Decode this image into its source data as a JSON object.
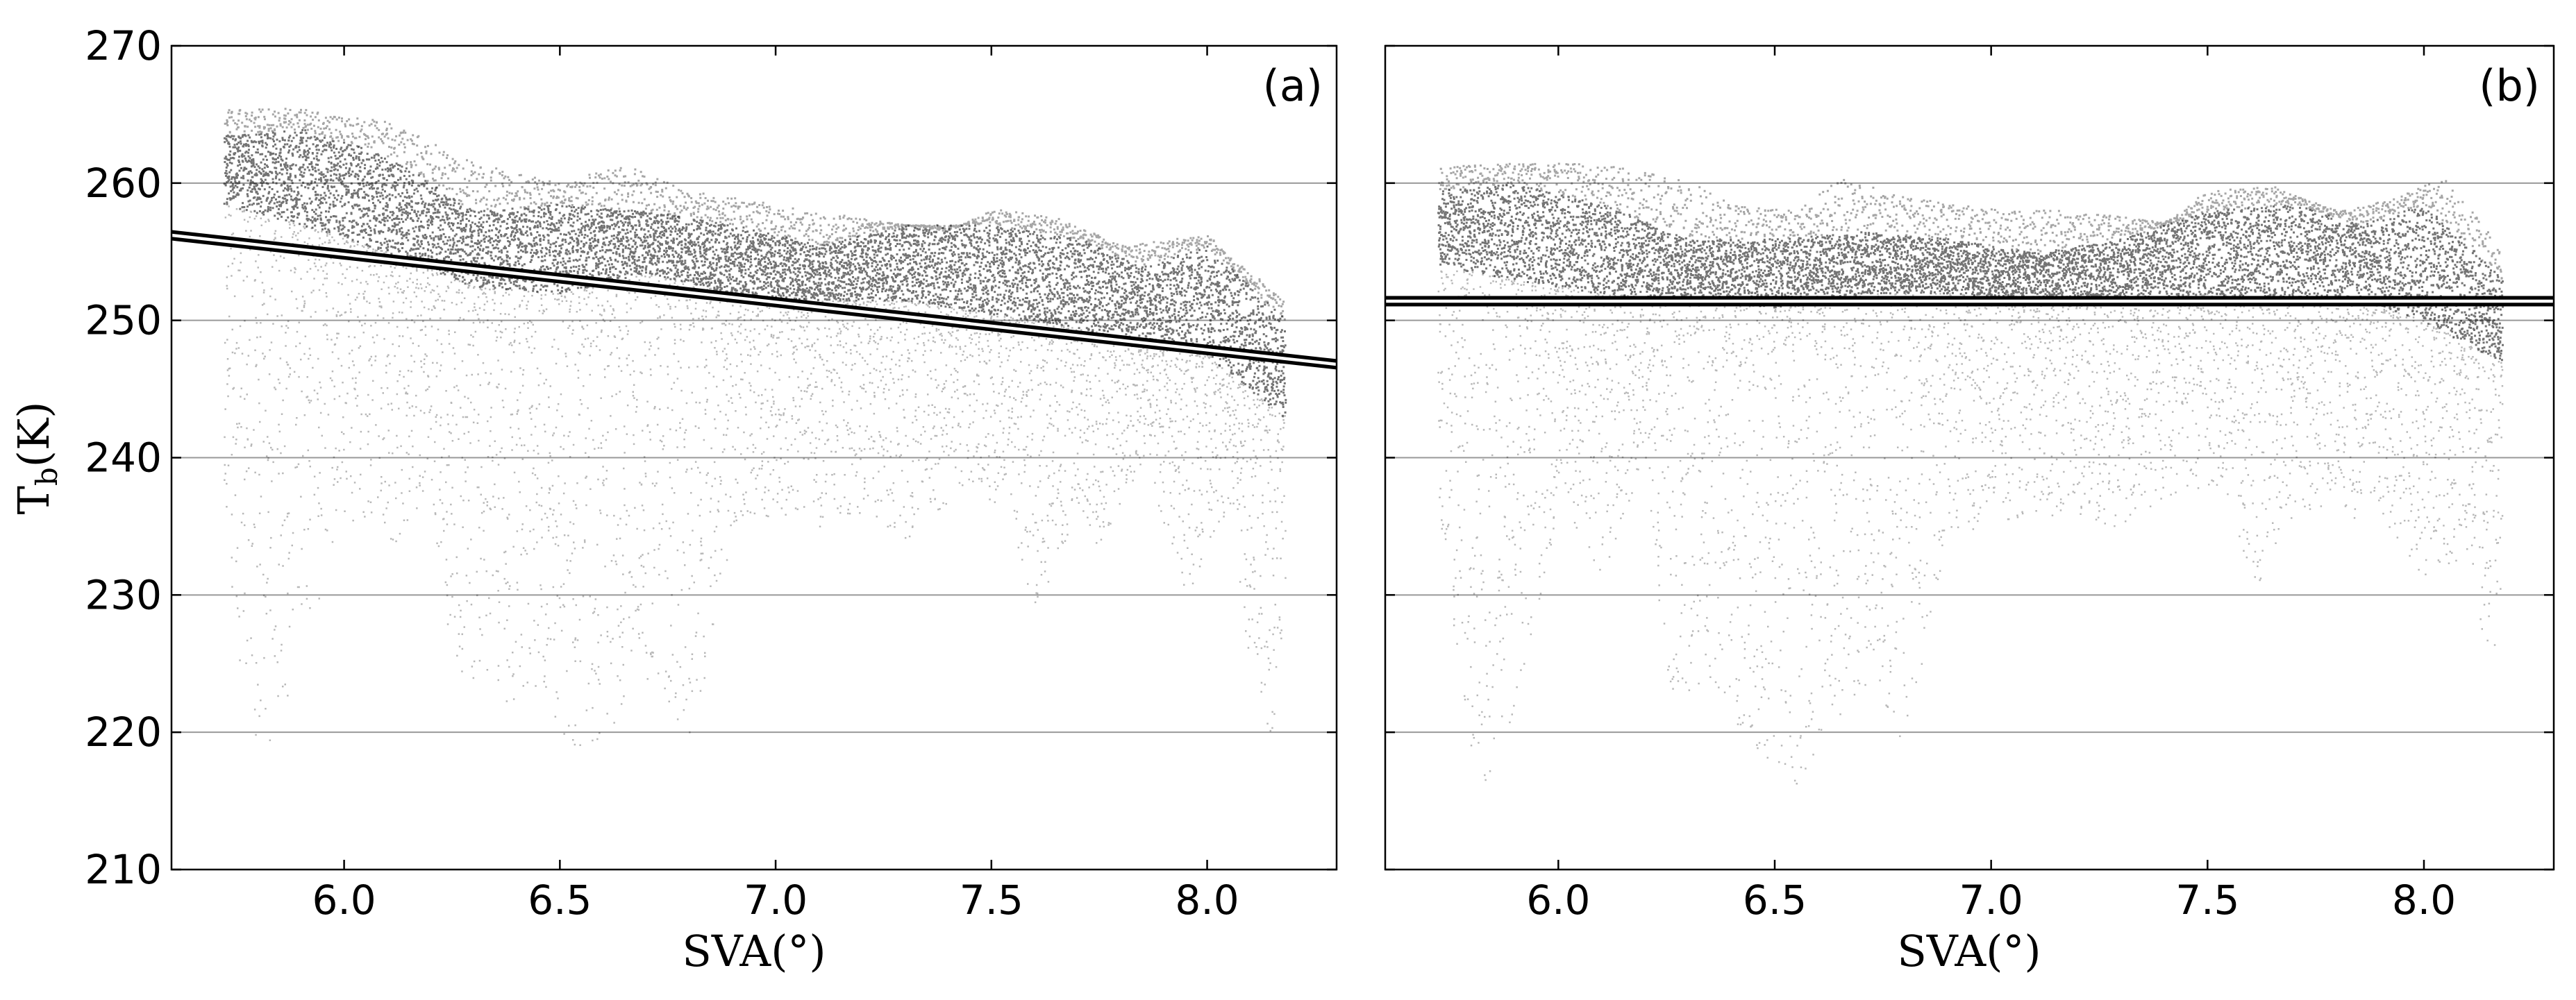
{
  "chart_data": [
    {
      "type": "scatter",
      "panel_label": "(a)",
      "xlabel": "SVA(°)",
      "ylabel_main": "T",
      "ylabel_sub": "b",
      "ylabel_unit": "(K)",
      "xlim": [
        5.6,
        8.3
      ],
      "ylim": [
        210,
        270
      ],
      "xticks": [
        6.0,
        6.5,
        7.0,
        7.5,
        8.0
      ],
      "xtick_labels": [
        "6.0",
        "6.5",
        "7.0",
        "7.5",
        "8.0"
      ],
      "yticks": [
        210,
        220,
        230,
        240,
        250,
        260,
        270
      ],
      "ytick_labels": [
        "210",
        "220",
        "230",
        "240",
        "250",
        "260",
        "270"
      ],
      "grid": "horizontal",
      "x_range_of_points": [
        5.72,
        8.18
      ],
      "upper_envelope": [
        [
          5.72,
          265.5
        ],
        [
          5.9,
          265.5
        ],
        [
          6.1,
          264.5
        ],
        [
          6.3,
          261.5
        ],
        [
          6.5,
          260
        ],
        [
          6.65,
          261.5
        ],
        [
          6.8,
          259.5
        ],
        [
          7.0,
          258.5
        ],
        [
          7.2,
          257.5
        ],
        [
          7.4,
          256.5
        ],
        [
          7.5,
          258.2
        ],
        [
          7.65,
          257.5
        ],
        [
          7.8,
          255.5
        ],
        [
          8.0,
          256.3
        ],
        [
          8.18,
          251.5
        ]
      ],
      "dense_band": [
        [
          5.72,
          263.5,
          258.5
        ],
        [
          5.9,
          264,
          257
        ],
        [
          6.1,
          262,
          255
        ],
        [
          6.3,
          258,
          252.5
        ],
        [
          6.5,
          258.5,
          252
        ],
        [
          6.7,
          258,
          253.5
        ],
        [
          6.9,
          257,
          252
        ],
        [
          7.1,
          255.5,
          251.5
        ],
        [
          7.3,
          257,
          251.5
        ],
        [
          7.5,
          257,
          250.5
        ],
        [
          7.7,
          256,
          249.5
        ],
        [
          7.85,
          254,
          248.5
        ],
        [
          8.0,
          255.5,
          247.5
        ],
        [
          8.18,
          250,
          243
        ]
      ],
      "lower_envelope": [
        [
          5.72,
          232
        ],
        [
          5.8,
          217
        ],
        [
          5.9,
          226
        ],
        [
          6.0,
          236
        ],
        [
          6.1,
          233
        ],
        [
          6.2,
          238
        ],
        [
          6.25,
          224
        ],
        [
          6.35,
          222
        ],
        [
          6.45,
          223
        ],
        [
          6.55,
          218
        ],
        [
          6.65,
          221
        ],
        [
          6.72,
          224
        ],
        [
          6.8,
          219
        ],
        [
          6.9,
          234
        ],
        [
          7.0,
          236
        ],
        [
          7.1,
          235
        ],
        [
          7.2,
          236
        ],
        [
          7.3,
          234
        ],
        [
          7.45,
          238
        ],
        [
          7.55,
          235
        ],
        [
          7.6,
          228
        ],
        [
          7.7,
          236
        ],
        [
          7.75,
          233
        ],
        [
          7.85,
          240
        ],
        [
          7.95,
          230
        ],
        [
          8.05,
          236
        ],
        [
          8.1,
          224
        ],
        [
          8.15,
          219
        ],
        [
          8.18,
          232
        ]
      ],
      "fit_line": {
        "x": [
          5.6,
          8.3
        ],
        "y": [
          256.2,
          246.8
        ],
        "style": "black line with white inner stripe"
      }
    },
    {
      "type": "scatter",
      "panel_label": "(b)",
      "xlabel": "SVA(°)",
      "xlim": [
        5.6,
        8.3
      ],
      "ylim": [
        210,
        270
      ],
      "xticks": [
        6.0,
        6.5,
        7.0,
        7.5,
        8.0
      ],
      "xtick_labels": [
        "6.0",
        "6.5",
        "7.0",
        "7.5",
        "8.0"
      ],
      "yticks": [
        210,
        220,
        230,
        240,
        250,
        260,
        270
      ],
      "grid": "horizontal",
      "x_range_of_points": [
        5.72,
        8.18
      ],
      "upper_envelope": [
        [
          5.72,
          261.3
        ],
        [
          5.9,
          261.5
        ],
        [
          6.1,
          261.5
        ],
        [
          6.3,
          260.2
        ],
        [
          6.4,
          258.5
        ],
        [
          6.55,
          258
        ],
        [
          6.65,
          260.5
        ],
        [
          6.8,
          259
        ],
        [
          7.0,
          258.2
        ],
        [
          7.2,
          258
        ],
        [
          7.4,
          257.2
        ],
        [
          7.5,
          259.5
        ],
        [
          7.65,
          259.8
        ],
        [
          7.8,
          258
        ],
        [
          7.95,
          259.2
        ],
        [
          8.05,
          260.5
        ],
        [
          8.18,
          255
        ]
      ],
      "dense_band": [
        [
          5.72,
          259.5,
          254
        ],
        [
          5.9,
          260,
          253
        ],
        [
          6.1,
          258.5,
          252
        ],
        [
          6.3,
          256,
          251.5
        ],
        [
          6.5,
          256,
          251
        ],
        [
          6.7,
          256.5,
          252
        ],
        [
          6.9,
          256,
          252
        ],
        [
          7.1,
          255,
          251.5
        ],
        [
          7.3,
          256,
          251.5
        ],
        [
          7.5,
          258,
          252
        ],
        [
          7.7,
          258.5,
          251.5
        ],
        [
          7.85,
          257,
          251.5
        ],
        [
          8.0,
          258.5,
          250
        ],
        [
          8.18,
          253,
          247
        ]
      ],
      "lower_envelope": [
        [
          5.72,
          236
        ],
        [
          5.82,
          213
        ],
        [
          5.92,
          224
        ],
        [
          6.0,
          237
        ],
        [
          6.1,
          231
        ],
        [
          6.2,
          240
        ],
        [
          6.25,
          223
        ],
        [
          6.35,
          223
        ],
        [
          6.45,
          219
        ],
        [
          6.55,
          216
        ],
        [
          6.65,
          221
        ],
        [
          6.72,
          224
        ],
        [
          6.8,
          219
        ],
        [
          6.9,
          234
        ],
        [
          7.0,
          235
        ],
        [
          7.1,
          236
        ],
        [
          7.2,
          235
        ],
        [
          7.3,
          235
        ],
        [
          7.45,
          238
        ],
        [
          7.55,
          237
        ],
        [
          7.6,
          230
        ],
        [
          7.7,
          236
        ],
        [
          7.8,
          235
        ],
        [
          7.9,
          236
        ],
        [
          8.0,
          231
        ],
        [
          8.1,
          233
        ],
        [
          8.15,
          224
        ],
        [
          8.18,
          230
        ]
      ],
      "fit_line": {
        "x": [
          5.6,
          8.3
        ],
        "y": [
          251.4,
          251.4
        ],
        "style": "black line with white inner stripe"
      }
    }
  ]
}
